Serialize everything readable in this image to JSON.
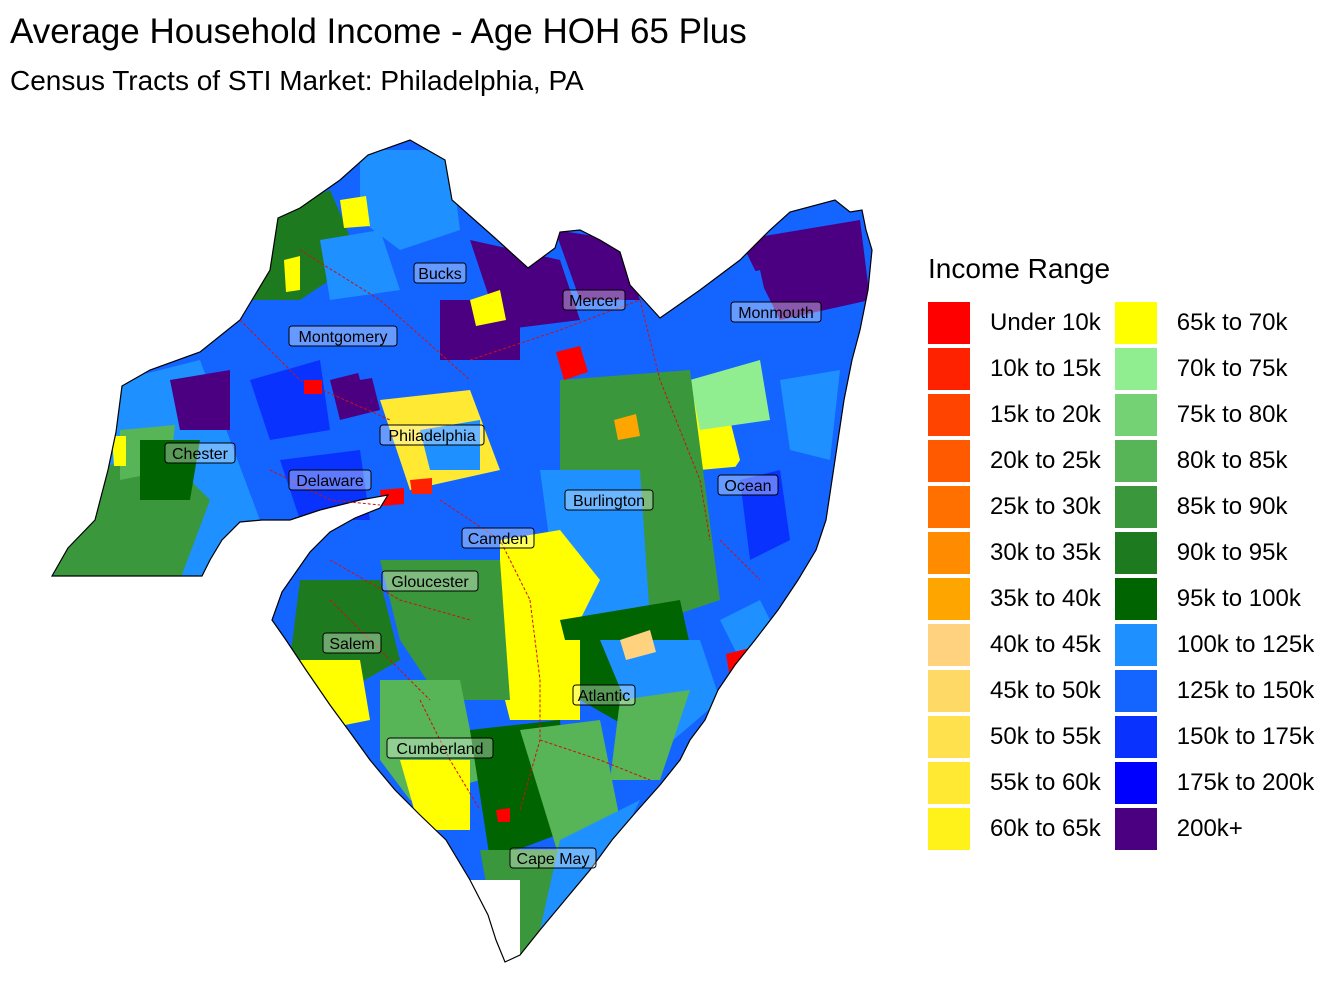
{
  "title": "Average Household Income - Age HOH 65 Plus",
  "subtitle": "Census Tracts of STI Market: Philadelphia, PA",
  "legend": {
    "title": "Income Range",
    "items": [
      {
        "label": "Under 10k",
        "color": "#ff0000"
      },
      {
        "label": "10k to 15k",
        "color": "#ff2200"
      },
      {
        "label": "15k to 20k",
        "color": "#ff4400"
      },
      {
        "label": "20k to 25k",
        "color": "#ff5a00"
      },
      {
        "label": "25k to 30k",
        "color": "#ff7000"
      },
      {
        "label": "30k to 35k",
        "color": "#ff8c00"
      },
      {
        "label": "35k to 40k",
        "color": "#ffa500"
      },
      {
        "label": "40k to 45k",
        "color": "#ffd27f"
      },
      {
        "label": "45k to 50k",
        "color": "#ffd966"
      },
      {
        "label": "50k to 55k",
        "color": "#ffe14d"
      },
      {
        "label": "55k to 60k",
        "color": "#ffe933"
      },
      {
        "label": "60k to 65k",
        "color": "#fff21a"
      },
      {
        "label": "65k to 70k",
        "color": "#ffff00"
      },
      {
        "label": "70k to 75k",
        "color": "#90ee90"
      },
      {
        "label": "75k to 80k",
        "color": "#74d174"
      },
      {
        "label": "80k to 85k",
        "color": "#57b457"
      },
      {
        "label": "85k to 90k",
        "color": "#3b973b"
      },
      {
        "label": "90k to 95k",
        "color": "#1e7a1e"
      },
      {
        "label": "95k to 100k",
        "color": "#006400"
      },
      {
        "label": "100k to 125k",
        "color": "#1e90ff"
      },
      {
        "label": "125k to 150k",
        "color": "#1464ff"
      },
      {
        "label": "150k to 175k",
        "color": "#0a32ff"
      },
      {
        "label": "175k to 200k",
        "color": "#0000ff"
      },
      {
        "label": "200k+",
        "color": "#4b0082"
      }
    ]
  },
  "counties": [
    {
      "name": "Bucks"
    },
    {
      "name": "Mercer"
    },
    {
      "name": "Monmouth"
    },
    {
      "name": "Montgomery"
    },
    {
      "name": "Philadelphia"
    },
    {
      "name": "Chester"
    },
    {
      "name": "Delaware"
    },
    {
      "name": "Burlington"
    },
    {
      "name": "Ocean"
    },
    {
      "name": "Camden"
    },
    {
      "name": "Gloucester"
    },
    {
      "name": "Salem"
    },
    {
      "name": "Atlantic"
    },
    {
      "name": "Cumberland"
    },
    {
      "name": "Cape May"
    }
  ]
}
